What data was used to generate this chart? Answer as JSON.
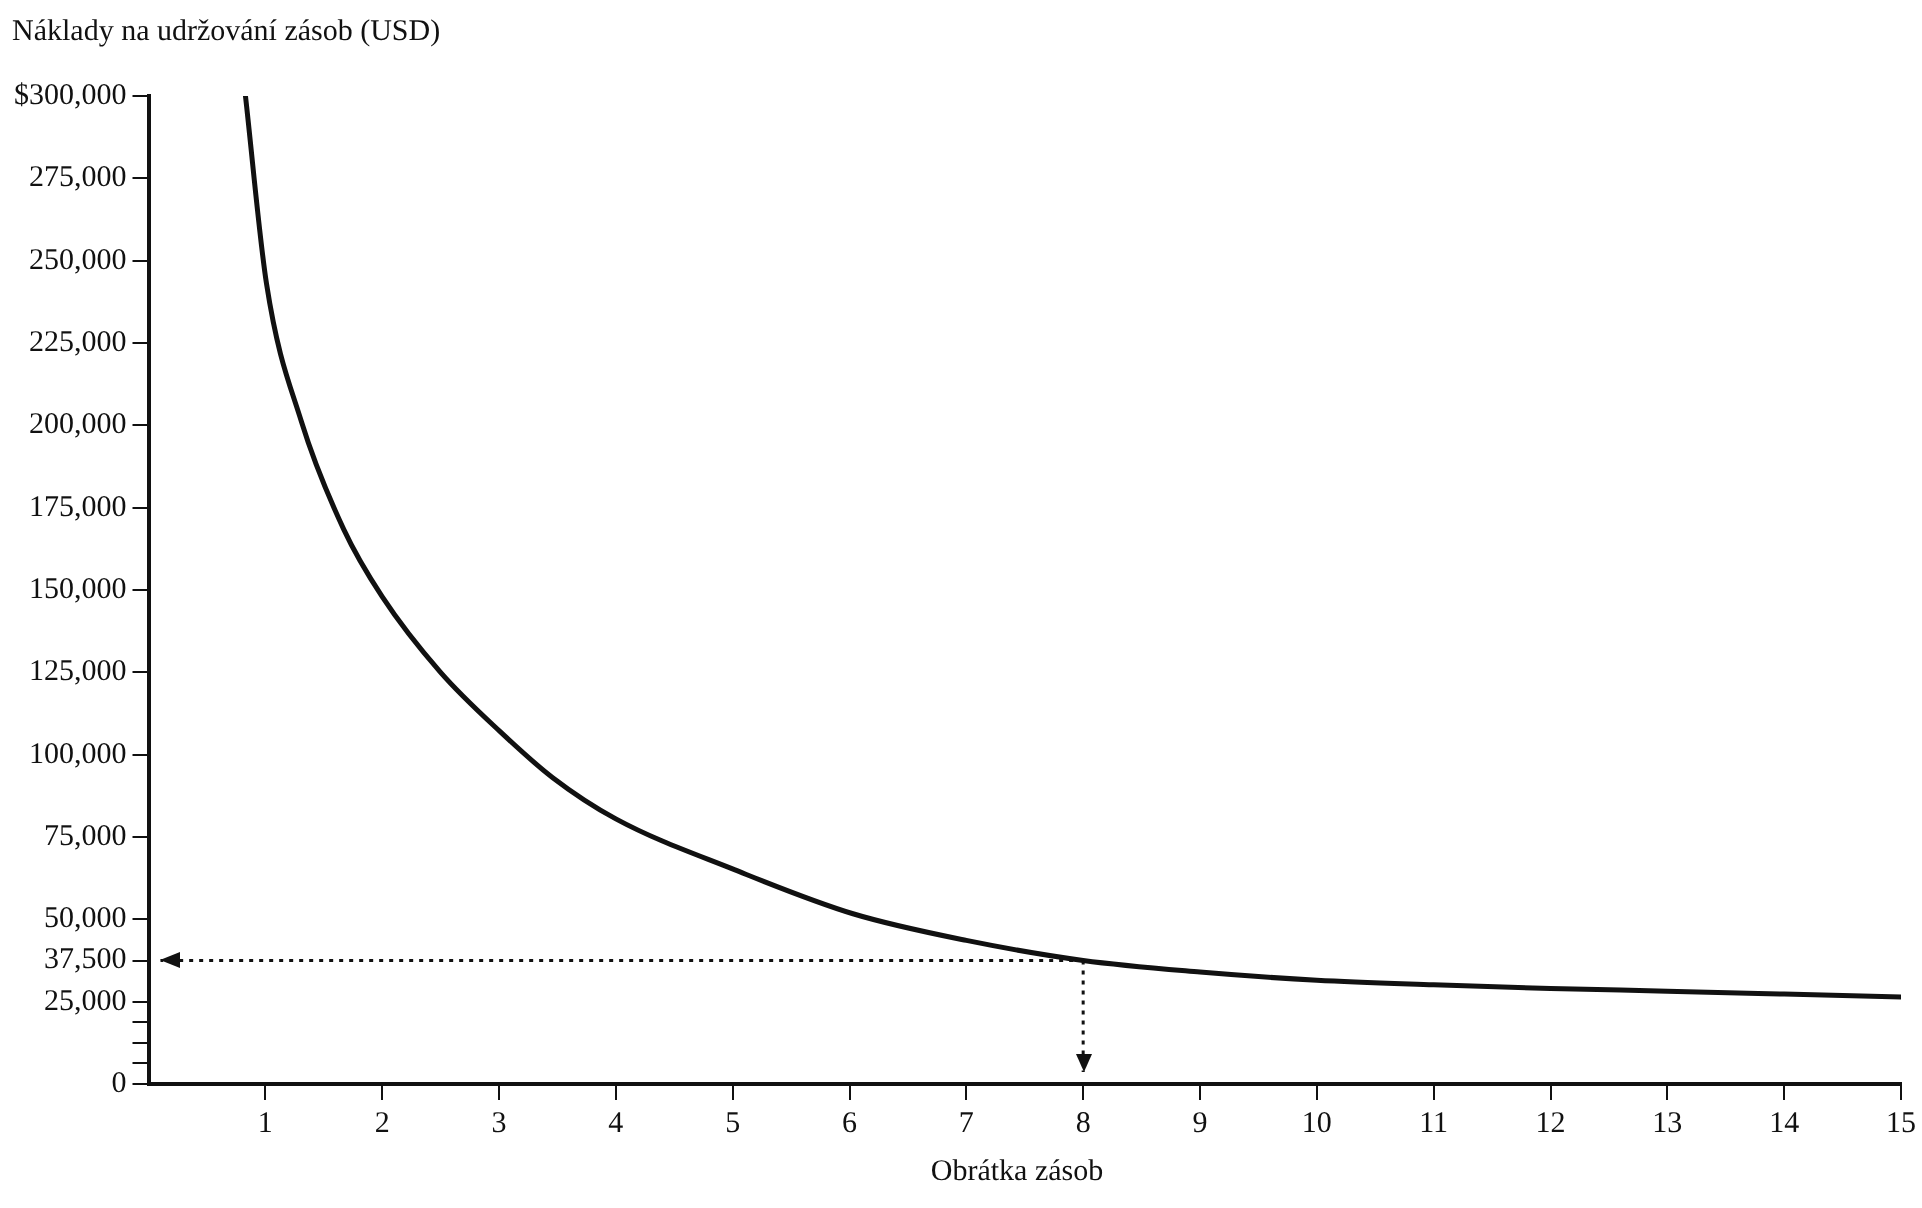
{
  "chart_data": {
    "type": "line",
    "xlabel": "Obrátka zásob",
    "ylabel": "Náklady na udržování zásob (USD)",
    "x": [
      0.83,
      1.01,
      1.31,
      1.67,
      2.0,
      2.5,
      3.01,
      3.46,
      4.0,
      5.02,
      6.03,
      7.0,
      8,
      9,
      10,
      11,
      12,
      13,
      14,
      15
    ],
    "series": [
      {
        "color": "#111111",
        "values": [
          300000,
          243000,
          201000,
          168500,
          148000,
          125000,
          107000,
          93000,
          80500,
          65000,
          51700,
          43600,
          37500,
          34000,
          31500,
          30100,
          29000,
          28200,
          27300,
          26400
        ]
      }
    ],
    "xlim": [
      0,
      15
    ],
    "xticks": [
      1,
      2,
      3,
      4,
      5,
      6,
      7,
      8,
      9,
      10,
      11,
      12,
      13,
      14,
      15
    ],
    "ylim": [
      0,
      300000
    ],
    "yticks": [
      {
        "value": 0,
        "label": "0"
      },
      {
        "value": 6250,
        "label": null
      },
      {
        "value": 12500,
        "label": null
      },
      {
        "value": 18750,
        "label": null
      },
      {
        "value": 25000,
        "label": "25,000"
      },
      {
        "value": 37500,
        "label": "37,500"
      },
      {
        "value": 50000,
        "label": "50,000"
      },
      {
        "value": 75000,
        "label": "75,000"
      },
      {
        "value": 100000,
        "label": "100,000"
      },
      {
        "value": 125000,
        "label": "125,000"
      },
      {
        "value": 150000,
        "label": "150,000"
      },
      {
        "value": 175000,
        "label": "175,000"
      },
      {
        "value": 200000,
        "label": "200,000"
      },
      {
        "value": 225000,
        "label": "225,000"
      },
      {
        "value": 250000,
        "label": "250,000"
      },
      {
        "value": 275000,
        "label": "275,000"
      },
      {
        "value": 300000,
        "label": "$300,000"
      }
    ],
    "ref_lines": [
      {
        "axis": "y",
        "value": 37500,
        "line_style": "dotted",
        "color": "#111111"
      },
      {
        "axis": "x",
        "value": 8,
        "line_style": "dotted",
        "color": "#111111"
      }
    ],
    "grid": false,
    "legend": false,
    "marker": "none",
    "line_style": "solid"
  }
}
